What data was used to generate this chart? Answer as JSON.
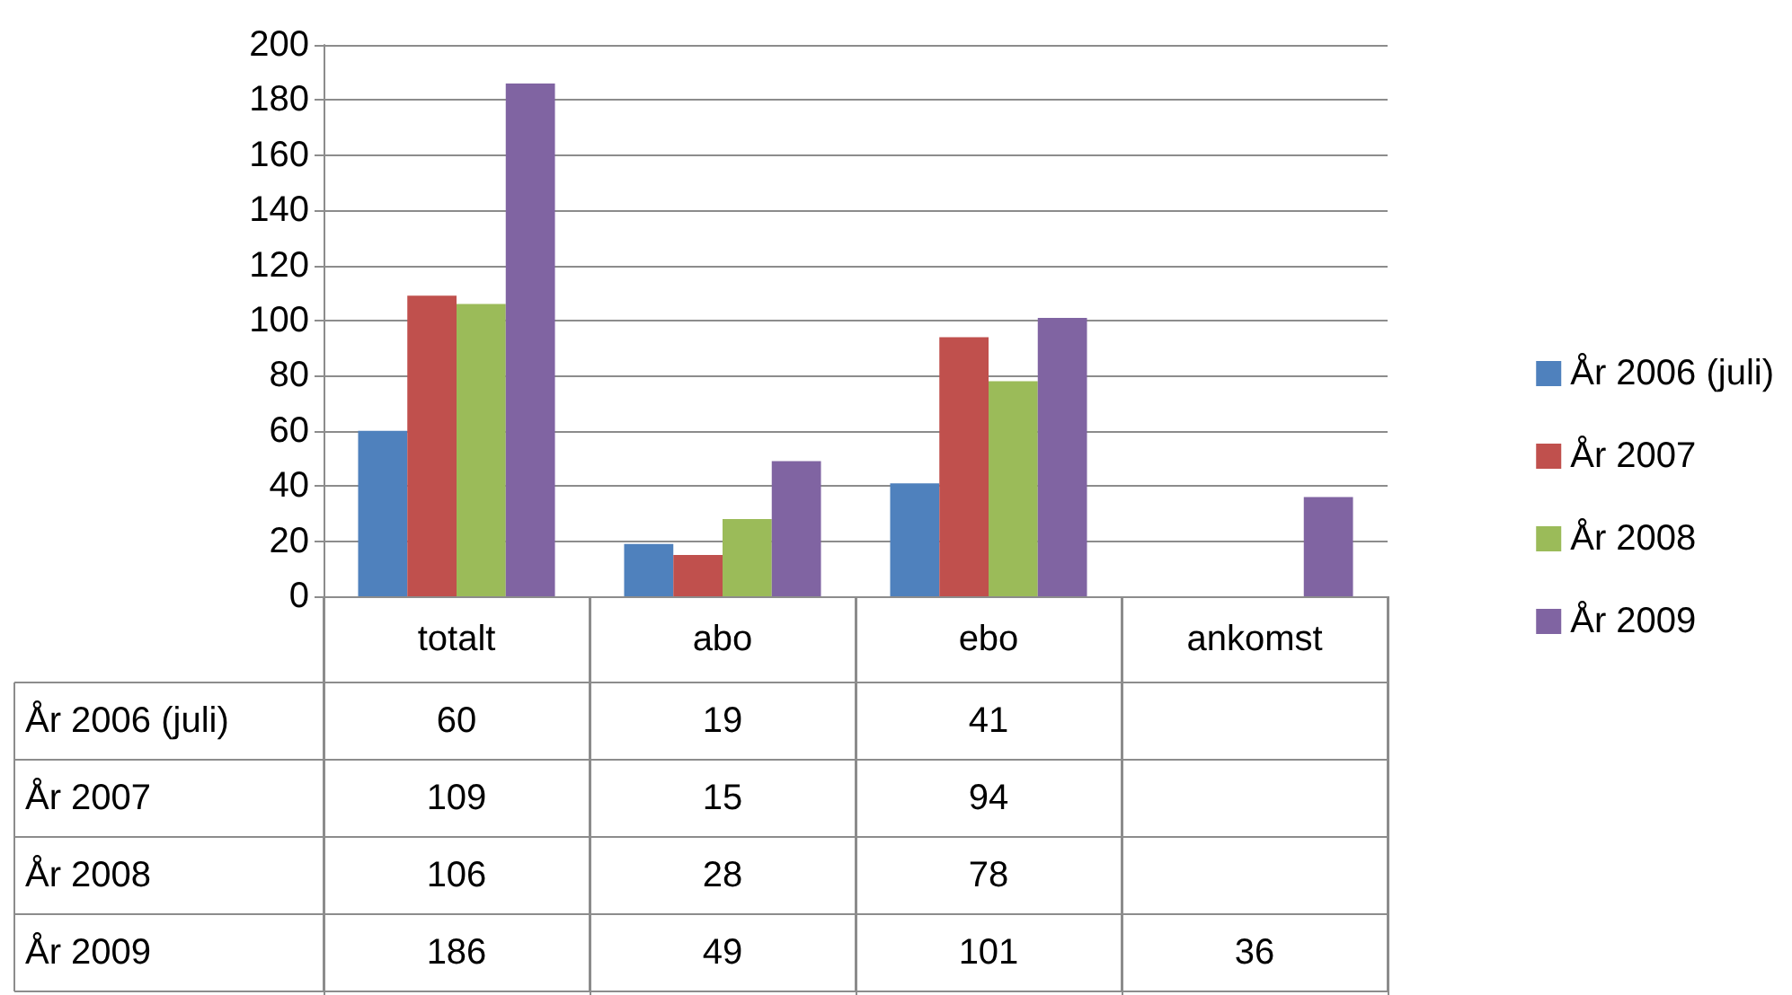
{
  "chart_data": {
    "type": "bar",
    "categories": [
      "totalt",
      "abo",
      "ebo",
      "ankomst"
    ],
    "series": [
      {
        "name": "År 2006 (juli)",
        "color": "#4f81bd",
        "values": [
          60,
          19,
          41,
          null
        ]
      },
      {
        "name": "År 2007",
        "color": "#c0504d",
        "values": [
          109,
          15,
          94,
          null
        ]
      },
      {
        "name": "År 2008",
        "color": "#9bbb59",
        "values": [
          106,
          28,
          78,
          null
        ]
      },
      {
        "name": "År 2009",
        "color": "#8064a2",
        "values": [
          186,
          49,
          101,
          36
        ]
      }
    ],
    "ylim": [
      0,
      200
    ],
    "yticks": [
      0,
      20,
      40,
      60,
      80,
      100,
      120,
      140,
      160,
      180,
      200
    ],
    "grid": "y",
    "legend": "right",
    "data_labels": true
  }
}
